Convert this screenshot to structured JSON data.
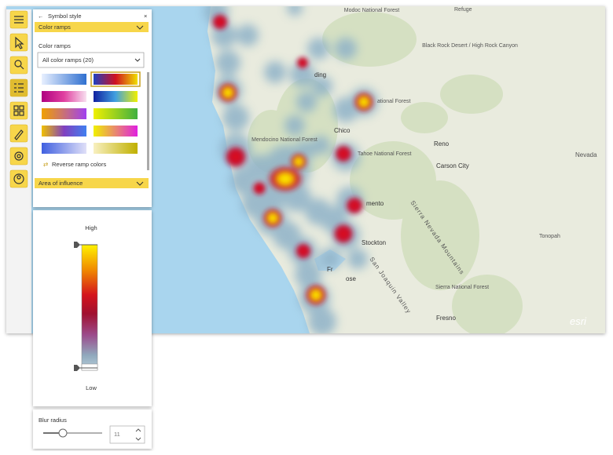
{
  "panel": {
    "title": "Symbol style",
    "color_ramps_header": "Color ramps",
    "color_ramps_label": "Color ramps",
    "ramp_dropdown": "All color ramps (20)",
    "reverse_label": "Reverse ramp colors",
    "area_header": "Area of influence"
  },
  "legend": {
    "high": "High",
    "low": "Low"
  },
  "blur": {
    "label": "Blur radius",
    "value": 11
  },
  "map": {
    "labels": [
      "Modoc National Forest",
      "Refuge",
      "Black Rock Desert / High Rock Canyon",
      "Reno",
      "Carson City",
      "Nevada",
      "Tahoe National Forest",
      "Chico",
      "Mendocino National Forest",
      "ding",
      "mento",
      "Stockton",
      "Sierra Nevada Mountains",
      "San Joaquin Valley",
      "Tonopah",
      "Sierra National Forest",
      "Fresno",
      "esri",
      "ational Forest",
      "Fr",
      "ose"
    ]
  }
}
